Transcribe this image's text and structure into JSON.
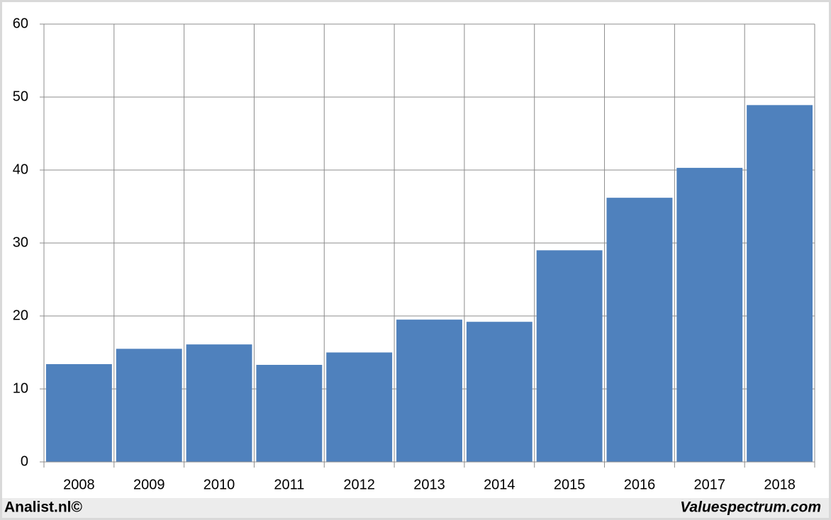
{
  "chart_data": {
    "type": "bar",
    "categories": [
      "2008",
      "2009",
      "2010",
      "2011",
      "2012",
      "2013",
      "2014",
      "2015",
      "2016",
      "2017",
      "2018"
    ],
    "values": [
      13.4,
      15.5,
      16.1,
      13.3,
      15.0,
      19.5,
      19.2,
      29.0,
      36.2,
      40.3,
      48.9
    ],
    "color": "#4f81bd",
    "ylim": [
      0,
      60
    ],
    "yticks": [
      0,
      10,
      20,
      30,
      40,
      50,
      60
    ],
    "grid": true
  },
  "footer": {
    "left": "Analist.nl©",
    "right": "Valuespectrum.com"
  }
}
